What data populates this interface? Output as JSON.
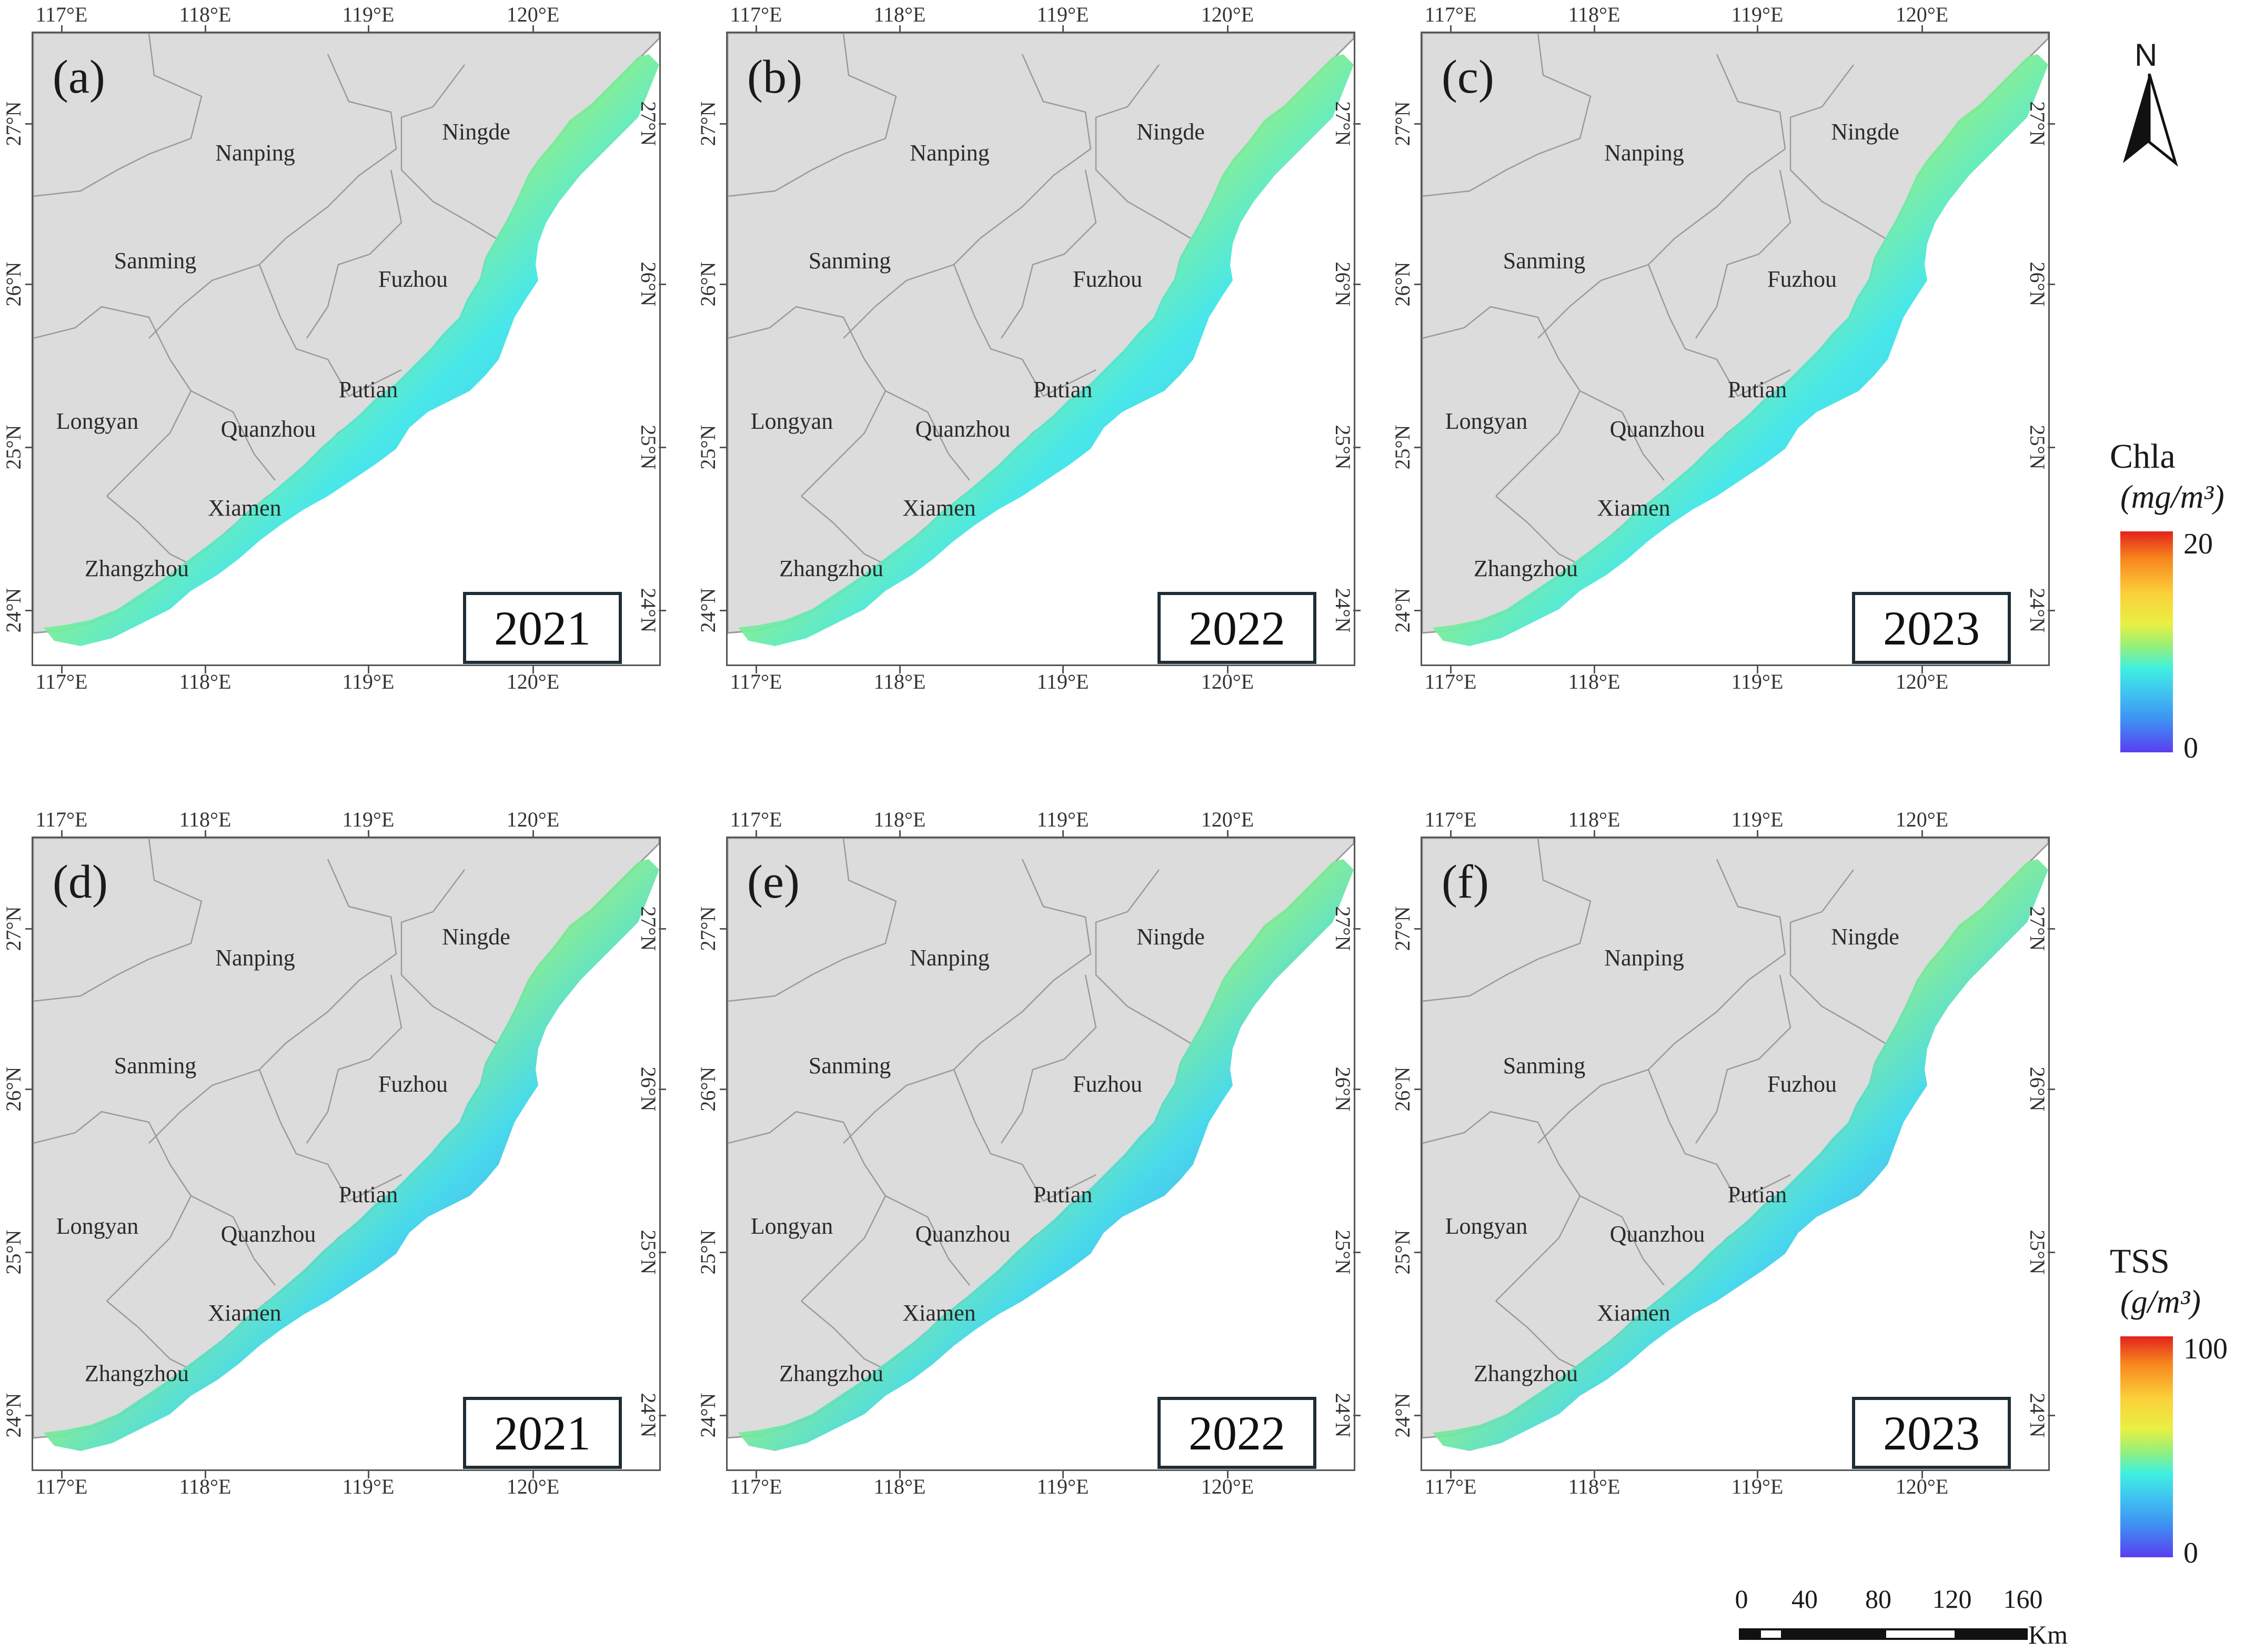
{
  "figure": {
    "panels": [
      {
        "label": "(a)",
        "year": "2021",
        "variable": "Chla"
      },
      {
        "label": "(b)",
        "year": "2022",
        "variable": "Chla"
      },
      {
        "label": "(c)",
        "year": "2023",
        "variable": "Chla"
      },
      {
        "label": "(d)",
        "year": "2021",
        "variable": "TSS"
      },
      {
        "label": "(e)",
        "year": "2022",
        "variable": "TSS"
      },
      {
        "label": "(f)",
        "year": "2023",
        "variable": "TSS"
      }
    ],
    "lon_ticks": [
      "117°E",
      "118°E",
      "119°E",
      "120°E"
    ],
    "lat_ticks": [
      "24°N",
      "25°N",
      "26°N",
      "27°N"
    ],
    "cities": [
      "Nanping",
      "Ningde",
      "Sanming",
      "Fuzhou",
      "Putian",
      "Longyan",
      "Quanzhou",
      "Xiamen",
      "Zhangzhou"
    ]
  },
  "legend_chla": {
    "title": "Chla",
    "unit": "(mg/m³)",
    "max": "20",
    "min": "0",
    "range": [
      0,
      20
    ]
  },
  "legend_tss": {
    "title": "TSS",
    "unit": "(g/m³)",
    "max": "100",
    "min": "0",
    "range": [
      0,
      100
    ]
  },
  "north_arrow": {
    "label": "N"
  },
  "scale_bar": {
    "ticks": [
      "0",
      "40",
      "80",
      "120",
      "160"
    ],
    "unit": "Km"
  },
  "colors": {
    "land": "#dcdcdc",
    "land_border": "#9a9a9a",
    "ocean_background": "#ffffff",
    "frame": "#555555",
    "year_box_border": "#1e2d36"
  }
}
